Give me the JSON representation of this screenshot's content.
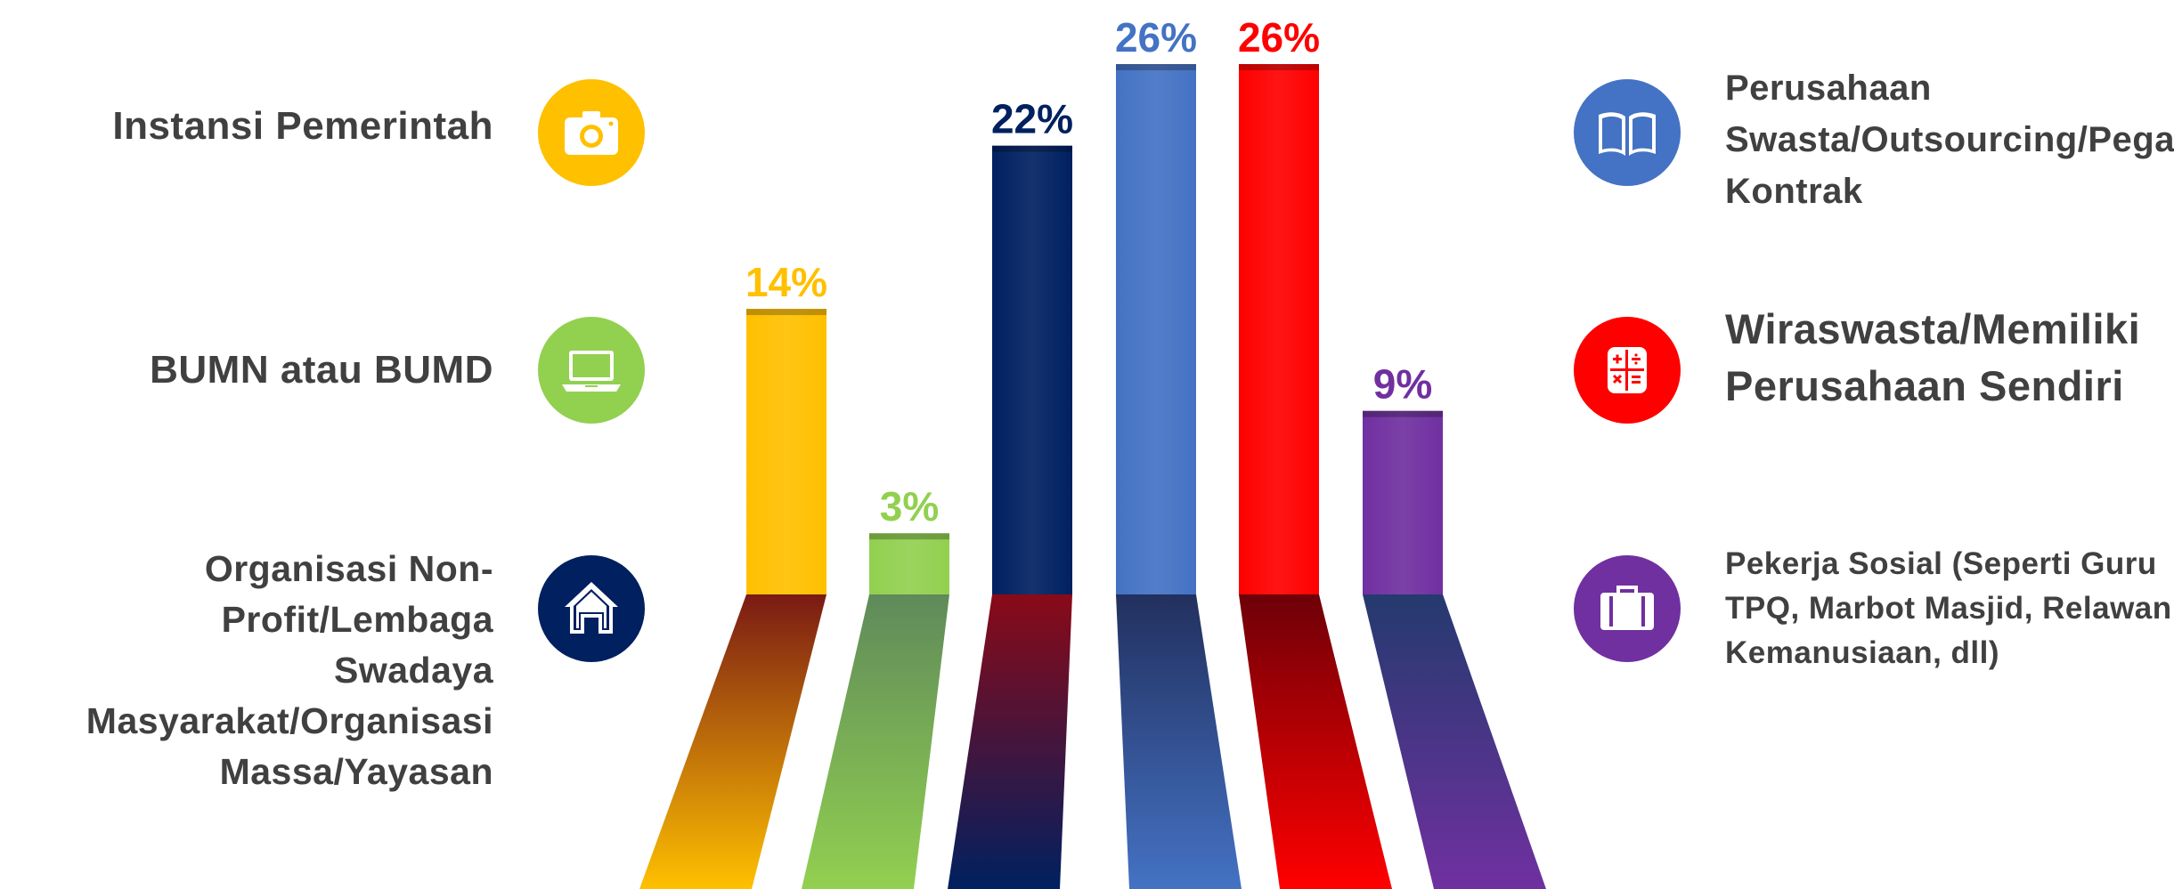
{
  "chart_data": {
    "type": "bar",
    "categories": [
      "Instansi Pemerintah",
      "BUMN atau BUMD",
      "Organisasi Non-Profit/Lembaga Swadaya Masyarakat/Organisasi Massa/Yayasan",
      "Perusahaan Swasta/Outsourcing/Pegawai Kontrak",
      "Wiraswasta/Memiliki Perusahaan Sendiri",
      "Pekerja Sosial (Seperti Guru TPQ, Marbot Masjid, Relawan Kemanusiaan, dll)"
    ],
    "values": [
      14,
      3,
      22,
      26,
      26,
      9
    ],
    "value_labels": [
      "14%",
      "3%",
      "22%",
      "26%",
      "26%",
      "9%"
    ],
    "colors": [
      "#FFC000",
      "#92D050",
      "#002060",
      "#4472C4",
      "#FF0000",
      "#7030A0"
    ],
    "ylim": [
      0,
      26
    ],
    "grid": false,
    "legend": "left-and-right"
  },
  "legend_items": [
    {
      "label": "Instansi Pemerintah",
      "icon": "camera-icon",
      "color": "#FFC000"
    },
    {
      "label": "BUMN atau BUMD",
      "icon": "laptop-icon",
      "color": "#92D050"
    },
    {
      "label": "Organisasi Non-Profit/Lembaga\nSwadaya Masyarakat/Organisasi\nMassa/Yayasan",
      "icon": "home-icon",
      "color": "#002060"
    },
    {
      "label": "Perusahaan\nSwasta/Outsourcing/Pegawai\nKontrak",
      "icon": "book-icon",
      "color": "#4472C4"
    },
    {
      "label": "Wiraswasta/Memiliki\nPerusahaan Sendiri",
      "icon": "calculator-icon",
      "color": "#FF0000"
    },
    {
      "label": "Pekerja Sosial (Seperti Guru\nTPQ, Marbot Masjid, Relawan\nKemanusiaan, dll)",
      "icon": "briefcase-icon",
      "color": "#7030A0"
    }
  ]
}
